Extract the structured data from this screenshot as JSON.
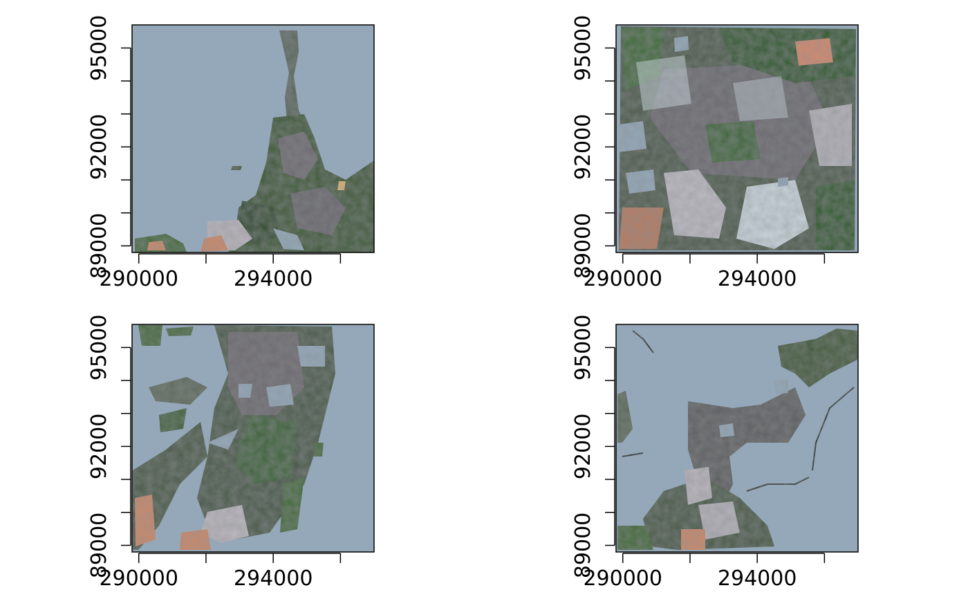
{
  "chart_data": [
    {
      "type": "raster",
      "panel": "top-left",
      "coverage": "northeast-and-southeast land with masked background",
      "background_color": "#94a8b9",
      "x_ticks": [
        290000,
        291000,
        292000,
        293000,
        294000,
        295000,
        296000
      ],
      "x_tick_labels": [
        "290000",
        "",
        "294000"
      ],
      "y_ticks": [
        89000,
        90000,
        91000,
        92000,
        93000,
        94000,
        95000
      ],
      "y_tick_labels": [
        "89000",
        "92000",
        "95000"
      ],
      "xlim": [
        289800,
        297000
      ],
      "ylim": [
        88800,
        95700
      ]
    },
    {
      "type": "raster",
      "panel": "top-right",
      "coverage": "full scene, mostly land",
      "background_color": "#94a8b9",
      "x_ticks": [
        290000,
        291000,
        292000,
        293000,
        294000,
        295000,
        296000
      ],
      "x_tick_labels": [
        "290000",
        "",
        "294000"
      ],
      "y_ticks": [
        89000,
        90000,
        91000,
        92000,
        93000,
        94000,
        95000
      ],
      "y_tick_labels": [
        "89000",
        "92000",
        "95000"
      ],
      "xlim": [
        289800,
        297000
      ],
      "ylim": [
        88800,
        95700
      ]
    },
    {
      "type": "raster",
      "panel": "bottom-left",
      "coverage": "fragmented land patches on masked background",
      "background_color": "#94a8b9",
      "x_ticks": [
        290000,
        291000,
        292000,
        293000,
        294000,
        295000,
        296000
      ],
      "x_tick_labels": [
        "290000",
        "",
        "294000"
      ],
      "y_ticks": [
        89000,
        90000,
        91000,
        92000,
        93000,
        94000,
        95000
      ],
      "y_tick_labels": [
        "89000",
        "92000",
        "95000"
      ],
      "xlim": [
        289800,
        297000
      ],
      "ylim": [
        88800,
        95700
      ]
    },
    {
      "type": "raster",
      "panel": "bottom-right",
      "coverage": "central and north-east land with masked background",
      "background_color": "#94a8b9",
      "x_ticks": [
        290000,
        291000,
        292000,
        293000,
        294000,
        295000,
        296000
      ],
      "x_tick_labels": [
        "290000",
        "",
        "294000"
      ],
      "y_ticks": [
        89000,
        90000,
        91000,
        92000,
        93000,
        94000,
        95000
      ],
      "y_tick_labels": [
        "89000",
        "92000",
        "95000"
      ],
      "xlim": [
        289800,
        297000
      ],
      "ylim": [
        88800,
        95700
      ]
    }
  ],
  "colors": {
    "mask": "#94a8b9",
    "vegetation_dark": "#2e4a2a",
    "vegetation_mid": "#3f6a35",
    "urban": "#6e6a70",
    "urban_light": "#b9b6bd",
    "cloud": "#c9d6dd",
    "bare_soil": "#c98a6a"
  }
}
